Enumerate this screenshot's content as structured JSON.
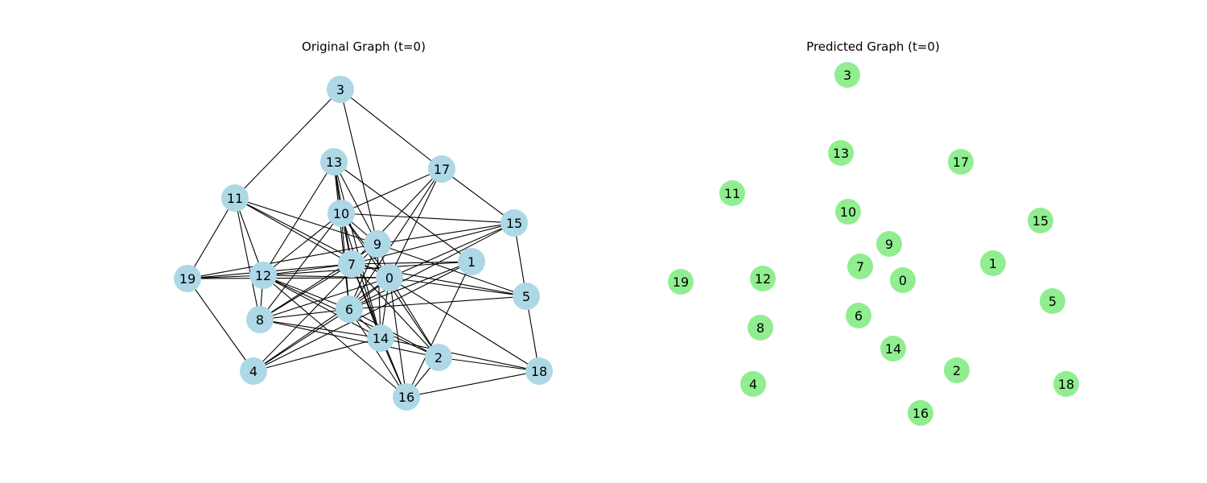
{
  "colors": {
    "original_node": "#add8e6",
    "predicted_node": "#90ee90",
    "edge": "#000000",
    "background": "#ffffff"
  },
  "graphs": [
    {
      "id": "original",
      "title": "Original Graph (t=0)",
      "nodes": [
        {
          "id": "0"
        },
        {
          "id": "1"
        },
        {
          "id": "2"
        },
        {
          "id": "3"
        },
        {
          "id": "4"
        },
        {
          "id": "5"
        },
        {
          "id": "6"
        },
        {
          "id": "7"
        },
        {
          "id": "8"
        },
        {
          "id": "9"
        },
        {
          "id": "10"
        },
        {
          "id": "11"
        },
        {
          "id": "12"
        },
        {
          "id": "13"
        },
        {
          "id": "14"
        },
        {
          "id": "15"
        },
        {
          "id": "16"
        },
        {
          "id": "17"
        },
        {
          "id": "18"
        },
        {
          "id": "19"
        }
      ],
      "edges": [
        [
          "3",
          "11"
        ],
        [
          "3",
          "17"
        ],
        [
          "3",
          "9"
        ],
        [
          "11",
          "19"
        ],
        [
          "11",
          "12"
        ],
        [
          "11",
          "8"
        ],
        [
          "11",
          "9"
        ],
        [
          "11",
          "7"
        ],
        [
          "11",
          "0"
        ],
        [
          "13",
          "10"
        ],
        [
          "13",
          "12"
        ],
        [
          "13",
          "1"
        ],
        [
          "13",
          "7"
        ],
        [
          "13",
          "6"
        ],
        [
          "13",
          "14"
        ],
        [
          "13",
          "9"
        ],
        [
          "17",
          "10"
        ],
        [
          "17",
          "15"
        ],
        [
          "17",
          "7"
        ],
        [
          "17",
          "6"
        ],
        [
          "17",
          "0"
        ],
        [
          "10",
          "15"
        ],
        [
          "10",
          "9"
        ],
        [
          "10",
          "8"
        ],
        [
          "10",
          "12"
        ],
        [
          "10",
          "7"
        ],
        [
          "10",
          "0"
        ],
        [
          "10",
          "6"
        ],
        [
          "10",
          "14"
        ],
        [
          "10",
          "2"
        ],
        [
          "15",
          "9"
        ],
        [
          "15",
          "7"
        ],
        [
          "15",
          "5"
        ],
        [
          "15",
          "6"
        ],
        [
          "15",
          "0"
        ],
        [
          "9",
          "19"
        ],
        [
          "9",
          "4"
        ],
        [
          "9",
          "6"
        ],
        [
          "9",
          "14"
        ],
        [
          "9",
          "5"
        ],
        [
          "9",
          "8"
        ],
        [
          "9",
          "0"
        ],
        [
          "7",
          "19"
        ],
        [
          "7",
          "12"
        ],
        [
          "7",
          "1"
        ],
        [
          "7",
          "5"
        ],
        [
          "7",
          "8"
        ],
        [
          "7",
          "14"
        ],
        [
          "7",
          "2"
        ],
        [
          "7",
          "16"
        ],
        [
          "1",
          "6"
        ],
        [
          "1",
          "12"
        ],
        [
          "1",
          "16"
        ],
        [
          "1",
          "4"
        ],
        [
          "19",
          "12"
        ],
        [
          "19",
          "0"
        ],
        [
          "19",
          "4"
        ],
        [
          "12",
          "0"
        ],
        [
          "12",
          "6"
        ],
        [
          "12",
          "14"
        ],
        [
          "12",
          "8"
        ],
        [
          "12",
          "2"
        ],
        [
          "0",
          "5"
        ],
        [
          "0",
          "8"
        ],
        [
          "0",
          "4"
        ],
        [
          "0",
          "2"
        ],
        [
          "0",
          "18"
        ],
        [
          "0",
          "16"
        ],
        [
          "0",
          "14"
        ],
        [
          "0",
          "6"
        ],
        [
          "5",
          "6"
        ],
        [
          "5",
          "18"
        ],
        [
          "8",
          "6"
        ],
        [
          "8",
          "14"
        ],
        [
          "8",
          "2"
        ],
        [
          "6",
          "16"
        ],
        [
          "6",
          "4"
        ],
        [
          "6",
          "14"
        ],
        [
          "6",
          "2"
        ],
        [
          "14",
          "18"
        ],
        [
          "14",
          "4"
        ],
        [
          "14",
          "16"
        ],
        [
          "2",
          "18"
        ],
        [
          "2",
          "16"
        ],
        [
          "16",
          "18"
        ],
        [
          "16",
          "12"
        ]
      ]
    },
    {
      "id": "predicted",
      "title": "Predicted Graph (t=0)",
      "nodes": [
        {
          "id": "0"
        },
        {
          "id": "1"
        },
        {
          "id": "2"
        },
        {
          "id": "3"
        },
        {
          "id": "4"
        },
        {
          "id": "5"
        },
        {
          "id": "6"
        },
        {
          "id": "7"
        },
        {
          "id": "8"
        },
        {
          "id": "9"
        },
        {
          "id": "10"
        },
        {
          "id": "11"
        },
        {
          "id": "12"
        },
        {
          "id": "13"
        },
        {
          "id": "14"
        },
        {
          "id": "15"
        },
        {
          "id": "16"
        },
        {
          "id": "17"
        },
        {
          "id": "18"
        },
        {
          "id": "19"
        }
      ],
      "edges": []
    }
  ]
}
